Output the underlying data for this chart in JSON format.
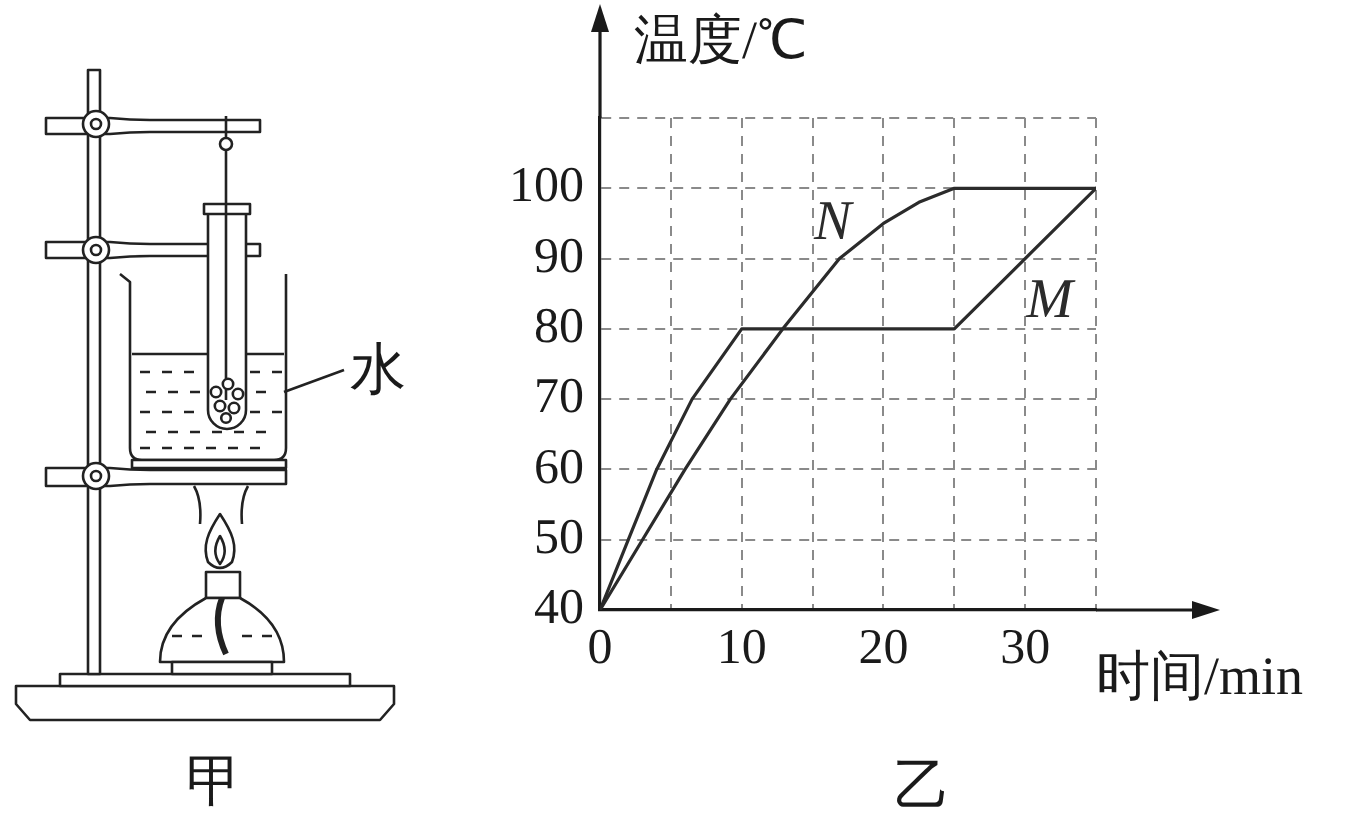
{
  "chart_data": {
    "type": "line",
    "xlabel": "时间/min",
    "ylabel": "温度/℃",
    "annotations": [
      "水",
      "甲",
      "乙"
    ],
    "series": [
      {
        "name": "N",
        "color": "#2b2b2b",
        "x": [
          0,
          3,
          6,
          9.2,
          12.9,
          16.9,
          20,
          22.5,
          25,
          35
        ],
        "values": [
          40,
          50,
          60,
          70,
          80,
          90,
          95,
          98,
          100,
          100
        ]
      },
      {
        "name": "M",
        "color": "#2b2b2b",
        "x": [
          0,
          2,
          4,
          6.5,
          10,
          25,
          35
        ],
        "values": [
          40,
          50,
          60,
          70,
          80,
          80,
          100
        ]
      }
    ],
    "xlim": [
      0,
      35
    ],
    "ylim": [
      40,
      110
    ],
    "xticks": [
      0,
      {
        "value": 5,
        "label": null
      },
      10,
      {
        "value": 15,
        "label": null
      },
      20,
      {
        "value": 25,
        "label": null
      },
      30,
      {
        "value": 35,
        "label": null
      }
    ],
    "yticks": [
      40,
      50,
      60,
      70,
      80,
      90,
      100,
      {
        "value": 110,
        "label": null
      }
    ],
    "grid": true,
    "legend": false,
    "marker": "none"
  }
}
